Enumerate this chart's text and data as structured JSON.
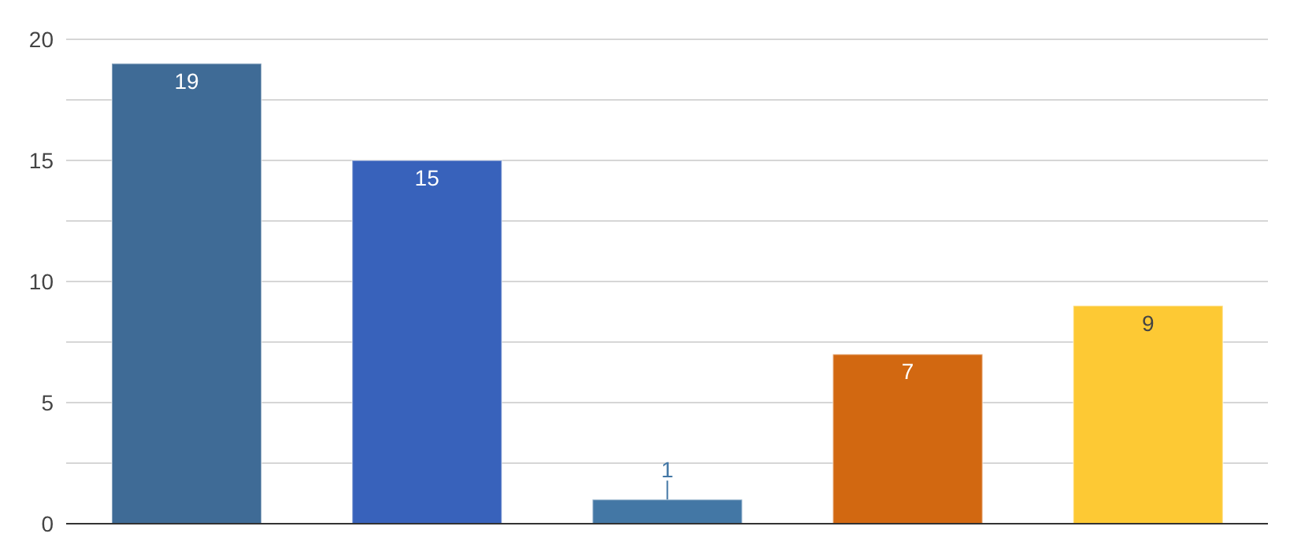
{
  "chart_data": {
    "type": "bar",
    "categories": [
      null,
      null,
      null,
      null,
      null
    ],
    "values": [
      19,
      15,
      1,
      7,
      9
    ],
    "colors": [
      "#3f6b96",
      "#3862bb",
      "#4377a5",
      "#d26811",
      "#fdc934"
    ],
    "ylim": [
      0,
      20
    ],
    "yticks": [
      0,
      {
        "value": 2.5,
        "label": null
      },
      5,
      {
        "value": 7.5,
        "label": null
      },
      10,
      {
        "value": 12.5,
        "label": null
      },
      15,
      {
        "value": 17.5,
        "label": null
      },
      20
    ],
    "grid": "y",
    "data_labels": true
  }
}
